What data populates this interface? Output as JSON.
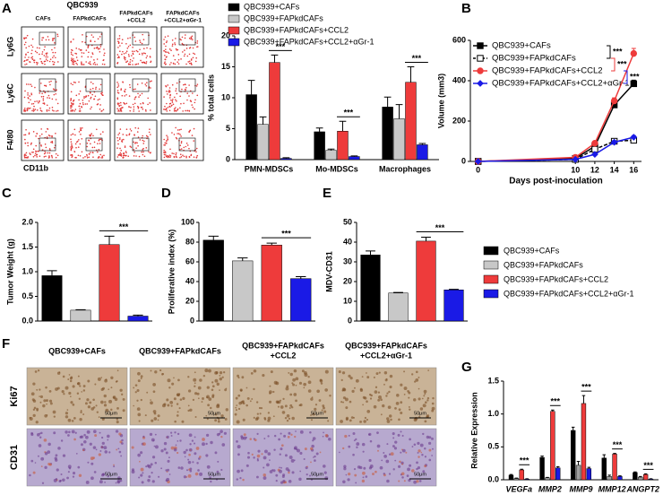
{
  "flow_panel": {
    "panel": "A",
    "title": "QBC939",
    "columns": [
      [
        "CAFs"
      ],
      [
        "FAPkdCAFs"
      ],
      [
        "FAPkdCAFs",
        "+CCL2"
      ],
      [
        "FAPkdCAFs",
        "+CCL2+αGr-1"
      ]
    ],
    "rows": [
      "Ly6G",
      "Ly6C",
      "F4/80"
    ],
    "x_label": "CD11b"
  },
  "legend": {
    "series": [
      {
        "name": "QBC939+CAFs",
        "color": "#000000"
      },
      {
        "name": "QBC939+FAPkdCAFs",
        "color": "#c8c8c8"
      },
      {
        "name": "QBC939+FAPkdCAFs+CCL2",
        "color": "#ee3b3b"
      },
      {
        "name": "QBC939+FAPkdCAFs+CCL2+αGr-1",
        "color": "#1a1ae6"
      }
    ]
  },
  "ihc_panel": {
    "panel": "F",
    "columns": [
      [
        "QBC939+CAFs"
      ],
      [
        "QBC939+FAPkdCAFs"
      ],
      [
        "QBC939+FAPkdCAFs",
        "+CCL2"
      ],
      [
        "QBC939+FAPkdCAFs",
        "+CCL2+αGr-1"
      ]
    ],
    "rows": [
      "Ki67",
      "CD31"
    ],
    "scale_bar": "50μm"
  },
  "chart_data": [
    {
      "type": "grouped_bar",
      "y_label": "% total cells",
      "categories": [
        "PMN-MDSCs",
        "Mo-MDSCs",
        "Macrophages"
      ],
      "series": [
        {
          "name": "QBC939+CAFs",
          "color": "#000000",
          "values": [
            10.5,
            4.5,
            8.5
          ],
          "errors": [
            2.3,
            0.6,
            1.6
          ]
        },
        {
          "name": "QBC939+FAPkdCAFs",
          "color": "#c8c8c8",
          "values": [
            5.7,
            1.5,
            6.6
          ],
          "errors": [
            1.2,
            0.2,
            2.3
          ]
        },
        {
          "name": "QBC939+FAPkdCAFs+CCL2",
          "color": "#ee3b3b",
          "values": [
            15.7,
            4.6,
            12.5
          ],
          "errors": [
            1.2,
            1.6,
            2.5
          ]
        },
        {
          "name": "QBC939+FAPkdCAFs+CCL2+αGr-1",
          "color": "#1a1ae6",
          "values": [
            0.2,
            0.5,
            2.4
          ],
          "errors": [
            0.1,
            0.1,
            0.2
          ]
        }
      ],
      "ylim": [
        0,
        20
      ],
      "yticks": [
        0,
        5,
        10,
        15,
        20
      ],
      "annotations": [
        {
          "text": "***",
          "category": "PMN-MDSCs"
        },
        {
          "text": "***",
          "category": "Mo-MDSCs"
        },
        {
          "text": "***",
          "category": "Macrophages"
        }
      ]
    },
    {
      "type": "line",
      "panel": "B",
      "x_label": "Days post-inoculation",
      "y_label": "Volume (mm3)",
      "x": [
        0,
        10,
        12,
        14,
        16
      ],
      "xlim": [
        -0.8,
        16.8
      ],
      "xticks": [
        0,
        10,
        12,
        14,
        16
      ],
      "ylim": [
        0,
        600
      ],
      "yticks": [
        0,
        200,
        400,
        600
      ],
      "series": [
        {
          "name": "QBC939+CAFs",
          "color": "#000000",
          "marker": "square",
          "fill": "#000000",
          "dashed": false,
          "values": [
            0,
            15,
            75,
            280,
            385
          ],
          "errors": [
            0,
            3,
            5,
            15,
            18
          ]
        },
        {
          "name": "QBC939+FAPkdCAFs",
          "color": "#000000",
          "marker": "square",
          "fill": "#ffffff",
          "dashed": true,
          "values": [
            0,
            10,
            60,
            100,
            105
          ],
          "errors": [
            0,
            2,
            4,
            8,
            8
          ]
        },
        {
          "name": "QBC939+FAPkdCAFs+CCL2",
          "color": "#ee3b3b",
          "marker": "circle",
          "fill": "#ee3b3b",
          "dashed": false,
          "values": [
            0,
            20,
            90,
            300,
            535
          ],
          "errors": [
            0,
            3,
            8,
            15,
            25
          ]
        },
        {
          "name": "QBC939+FAPkdCAFs+CCL2+αGr-1",
          "color": "#1a1ae6",
          "marker": "diamond",
          "fill": "#1a1ae6",
          "dashed": false,
          "values": [
            0,
            10,
            35,
            95,
            120
          ],
          "errors": [
            0,
            2,
            3,
            8,
            8
          ]
        }
      ],
      "annotations": [
        {
          "text": "***",
          "color": "#000000"
        },
        {
          "text": "***",
          "color": "#ee3b3b"
        },
        {
          "text": "***",
          "color": "#1a1ae6"
        }
      ]
    },
    {
      "type": "bar",
      "panel": "C",
      "y_label": "Tumor Weight (g)",
      "values": [
        0.92,
        0.22,
        1.55,
        0.1
      ],
      "errors": [
        0.1,
        0.01,
        0.17,
        0.02
      ],
      "ylim": [
        0,
        2
      ],
      "yticks": [
        {
          "value": 0,
          "label": "0.0"
        },
        0.5,
        {
          "value": 1,
          "label": "1.0"
        },
        1.5,
        {
          "value": 2,
          "label": "2.0"
        }
      ],
      "annotations": [
        {
          "text": "***"
        }
      ]
    },
    {
      "type": "bar",
      "panel": "D",
      "y_label": "Proliferative index (%)",
      "values": [
        82,
        61,
        77,
        43
      ],
      "errors": [
        4,
        3,
        2,
        2
      ],
      "ylim": [
        0,
        100
      ],
      "yticks": [
        0,
        20,
        40,
        60,
        80,
        100
      ],
      "annotations": [
        {
          "text": "***"
        }
      ]
    },
    {
      "type": "bar",
      "panel": "E",
      "y_label": "MDV-CD31",
      "values": [
        33.5,
        14.2,
        40.5,
        15.8
      ],
      "errors": [
        2,
        0.3,
        2,
        0.3
      ],
      "ylim": [
        0,
        50
      ],
      "yticks": [
        0,
        10,
        20,
        30,
        40,
        50
      ],
      "annotations": [
        {
          "text": "***"
        }
      ]
    },
    {
      "type": "grouped_bar",
      "panel": "G",
      "y_label": "Relative Expression",
      "category_style": "italic",
      "categories": [
        "VEGFa",
        "MMP2",
        "MMP9",
        "MMP12",
        "ANGPT2"
      ],
      "series": [
        {
          "color": "#000000",
          "values": [
            0.07,
            0.34,
            0.75,
            0.33,
            0.11
          ],
          "errors": [
            0.01,
            0.02,
            0.05,
            0.05,
            0.01
          ]
        },
        {
          "color": "#a0a0a0",
          "values": [
            0.02,
            0.03,
            0.22,
            0.05,
            0.04
          ],
          "errors": [
            0.005,
            0.005,
            0.06,
            0.02,
            0.01
          ]
        },
        {
          "color": "#ee3b3b",
          "values": [
            0.15,
            1.04,
            1.16,
            0.39,
            0.08
          ],
          "errors": [
            0.01,
            0.02,
            0.12,
            0.01,
            0.01
          ]
        },
        {
          "color": "#1a1ae6",
          "values": [
            0.01,
            0.18,
            0.17,
            0.05,
            0.01
          ],
          "errors": [
            0.005,
            0.02,
            0.02,
            0.01,
            0.005
          ]
        }
      ],
      "ylim": [
        0,
        1.5
      ],
      "yticks": [
        {
          "value": 0,
          "label": "0.0"
        },
        0.5,
        {
          "value": 1,
          "label": "1.0"
        },
        1.5
      ],
      "annotations": [
        {
          "text": "***",
          "category": "VEGFa"
        },
        {
          "text": "***",
          "category": "MMP2"
        },
        {
          "text": "***",
          "category": "MMP9"
        },
        {
          "text": "***",
          "category": "MMP12"
        },
        {
          "text": "***",
          "category": "ANGPT2"
        }
      ]
    }
  ]
}
